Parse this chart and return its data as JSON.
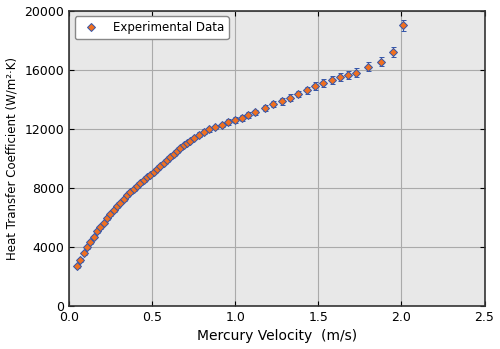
{
  "title": "",
  "xlabel": "Mercury Velocity  (m/s)",
  "ylabel": "Heat Transfer Coefficient (W/m²·K)",
  "xlim": [
    0,
    2.5
  ],
  "ylim": [
    0,
    20000
  ],
  "xticks": [
    0.0,
    0.5,
    1.0,
    1.5,
    2.0,
    2.5
  ],
  "yticks": [
    0,
    4000,
    8000,
    12000,
    16000,
    20000
  ],
  "legend_label": "Experimental Data",
  "marker_color": "#F07020",
  "marker_edge_color": "#3355AA",
  "marker_size": 4.5,
  "grid_color": "#AAAAAA",
  "bg_color": "#E8E8E8",
  "x_data": [
    0.05,
    0.07,
    0.09,
    0.11,
    0.13,
    0.15,
    0.17,
    0.19,
    0.21,
    0.23,
    0.25,
    0.27,
    0.29,
    0.31,
    0.33,
    0.35,
    0.37,
    0.39,
    0.41,
    0.43,
    0.45,
    0.47,
    0.49,
    0.51,
    0.53,
    0.55,
    0.57,
    0.59,
    0.61,
    0.63,
    0.65,
    0.67,
    0.69,
    0.71,
    0.73,
    0.75,
    0.78,
    0.81,
    0.84,
    0.88,
    0.92,
    0.96,
    1.0,
    1.04,
    1.08,
    1.12,
    1.18,
    1.23,
    1.28,
    1.33,
    1.38,
    1.43,
    1.48,
    1.53,
    1.58,
    1.63,
    1.68,
    1.73,
    1.8,
    1.88,
    1.95,
    2.01
  ],
  "y_data": [
    2700,
    3100,
    3600,
    4000,
    4350,
    4700,
    5050,
    5350,
    5650,
    5950,
    6200,
    6500,
    6750,
    7000,
    7250,
    7500,
    7700,
    7900,
    8100,
    8300,
    8500,
    8700,
    8900,
    9100,
    9300,
    9500,
    9700,
    9900,
    10100,
    10300,
    10500,
    10700,
    10900,
    11050,
    11200,
    11400,
    11600,
    11800,
    11950,
    12100,
    12250,
    12450,
    12600,
    12750,
    12900,
    13100,
    13400,
    13650,
    13850,
    14100,
    14350,
    14600,
    14900,
    15100,
    15300,
    15500,
    15650,
    15800,
    16200,
    16550,
    17200,
    19000
  ],
  "y_err_low": [
    120,
    120,
    120,
    120,
    120,
    120,
    120,
    120,
    120,
    120,
    120,
    120,
    120,
    120,
    120,
    120,
    120,
    120,
    120,
    120,
    120,
    120,
    120,
    120,
    120,
    120,
    120,
    120,
    120,
    120,
    120,
    120,
    120,
    120,
    120,
    120,
    150,
    150,
    150,
    150,
    150,
    180,
    180,
    200,
    200,
    200,
    200,
    200,
    220,
    220,
    220,
    250,
    250,
    250,
    250,
    250,
    280,
    280,
    300,
    320,
    350,
    380
  ],
  "y_err_high": [
    120,
    120,
    120,
    120,
    120,
    120,
    120,
    120,
    120,
    120,
    120,
    120,
    120,
    120,
    120,
    120,
    120,
    120,
    120,
    120,
    120,
    120,
    120,
    120,
    120,
    120,
    120,
    120,
    120,
    120,
    120,
    120,
    120,
    120,
    120,
    120,
    150,
    150,
    150,
    150,
    150,
    180,
    180,
    200,
    200,
    200,
    200,
    200,
    220,
    220,
    220,
    250,
    250,
    250,
    250,
    250,
    280,
    280,
    300,
    320,
    350,
    380
  ]
}
